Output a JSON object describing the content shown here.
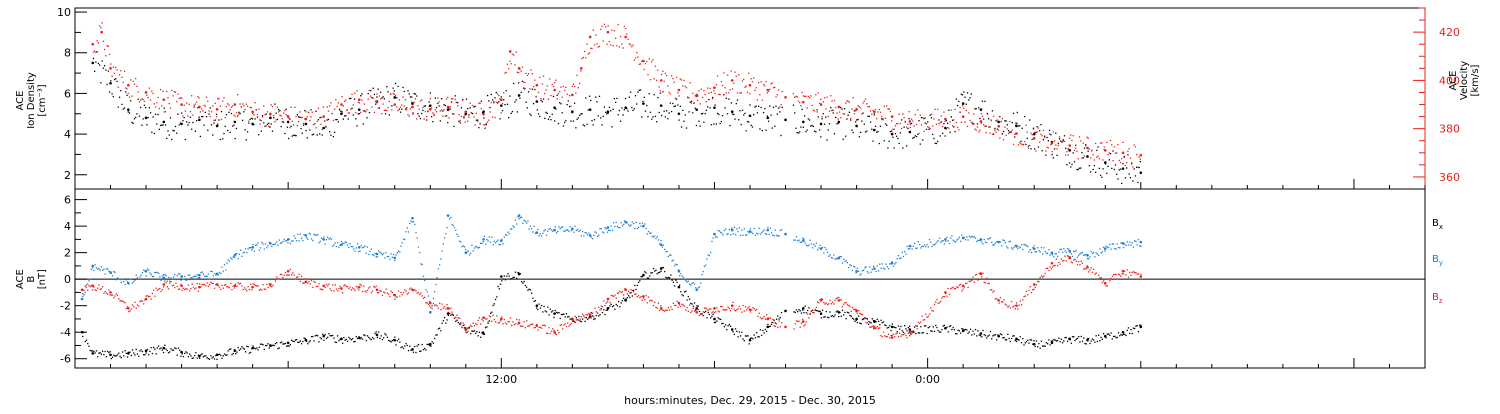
{
  "chart_data": [
    {
      "type": "scatter",
      "panel": "top",
      "ylabel_lines": [
        "ACE",
        "Ion Density",
        "[cm⁻³]"
      ],
      "y2label_lines": [
        "ACE",
        "Velocity",
        "[km/s]"
      ],
      "ylim": [
        1.3,
        10.2
      ],
      "y2lim": [
        355,
        430
      ],
      "yticks": [
        2,
        4,
        6,
        8,
        10
      ],
      "y2ticks": [
        360,
        380,
        400,
        420
      ],
      "series": [
        {
          "color": "#000000",
          "axis": "left",
          "x": [
            -11.5,
            -11,
            -10.5,
            -10,
            -9.5,
            -9,
            -8.5,
            -8,
            -7.5,
            -7,
            -6.5,
            -6,
            -5.5,
            -5,
            -4.5,
            -4,
            -3.5,
            -3,
            -2.5,
            -2,
            -1.5,
            -1,
            -0.5,
            0,
            0.5,
            1,
            1.5,
            2,
            2.5,
            3,
            3.5,
            4,
            4.5,
            5,
            5.5,
            6,
            6.5,
            7,
            7.5,
            8,
            8.5,
            9,
            9.5,
            10,
            10.5,
            11,
            11.5,
            12.5,
            13,
            13.5,
            14,
            14.5,
            15,
            15.5,
            16,
            16.5,
            17,
            17.5,
            18
          ],
          "y": [
            7.5,
            6.5,
            5.2,
            4.8,
            4.6,
            4.5,
            4.7,
            4.4,
            4.6,
            4.5,
            4.8,
            4.6,
            4.5,
            4.3,
            5.0,
            5.2,
            5.6,
            5.8,
            5.5,
            5.4,
            5.2,
            5.0,
            5.1,
            5.4,
            5.9,
            5.6,
            5.3,
            5.1,
            5.2,
            5.1,
            5.3,
            5.5,
            5.4,
            5.0,
            5.2,
            5.3,
            5.1,
            4.9,
            4.8,
            4.7,
            4.6,
            4.5,
            4.6,
            4.4,
            4.2,
            4.0,
            4.1,
            4.3,
            5.5,
            5.2,
            4.6,
            4.4,
            4.0,
            3.6,
            3.2,
            2.9,
            2.6,
            2.3,
            2.1
          ]
        },
        {
          "color": "#e8211b",
          "axis": "right",
          "x": [
            -11.5,
            -11.25,
            -11,
            -10.5,
            -10,
            -9.5,
            -9,
            -8.5,
            -8,
            -7.5,
            -7,
            -6.5,
            -6,
            -5.5,
            -5,
            -4.5,
            -4,
            -3.5,
            -3,
            -2.5,
            -2,
            -1.5,
            -1,
            -0.5,
            0,
            0.25,
            0.5,
            1,
            1.5,
            2,
            2.25,
            2.5,
            3,
            3.5,
            4,
            4.5,
            5,
            5.5,
            6,
            6.5,
            7,
            7.5,
            8,
            8.5,
            9,
            9.5,
            10,
            10.5,
            11,
            11.5,
            12.5,
            13,
            13.5,
            14,
            14.5,
            15,
            15.5,
            16,
            16.5,
            17,
            17.5,
            18
          ],
          "y": [
            415,
            420,
            405,
            398,
            395,
            392,
            390,
            389,
            388,
            390,
            387,
            386,
            385,
            384,
            385,
            390,
            392,
            391,
            390,
            389,
            388,
            389,
            387,
            386,
            392,
            412,
            405,
            398,
            396,
            394,
            405,
            418,
            420,
            418,
            408,
            400,
            396,
            394,
            397,
            400,
            398,
            396,
            393,
            391,
            390,
            389,
            388,
            387,
            385,
            383,
            384,
            385,
            383,
            381,
            378,
            376,
            374,
            373,
            372,
            371,
            370,
            369
          ]
        }
      ]
    },
    {
      "type": "scatter",
      "panel": "bottom",
      "ylabel_lines": [
        "ACE",
        "B",
        "[nT]"
      ],
      "ylim": [
        -6.7,
        6.8
      ],
      "yticks": [
        -6,
        -4,
        -2,
        0,
        2,
        4,
        6
      ],
      "xlabel": "hours:minutes, Dec. 29, 2015 - Dec. 30, 2015",
      "xlim": [
        -12,
        26
      ],
      "x_tick_labels": [
        {
          "x": 0,
          "label": "12:00"
        },
        {
          "x": 12,
          "label": "0:00"
        }
      ],
      "series": [
        {
          "name": "Bx",
          "label_main": "B",
          "label_sub": "x",
          "color": "#000000",
          "x": [
            -11.8,
            -11.5,
            -11,
            -10.5,
            -10,
            -9.5,
            -9,
            -8.5,
            -8,
            -7.5,
            -7,
            -6.5,
            -6,
            -5.5,
            -5,
            -4.5,
            -4,
            -3.5,
            -3,
            -2.5,
            -2,
            -1.5,
            -1,
            -0.5,
            0,
            0.5,
            1,
            1.5,
            2,
            2.5,
            3,
            3.5,
            4,
            4.5,
            5,
            5.5,
            6,
            6.5,
            7,
            7.5,
            8,
            8.5,
            9,
            9.5,
            10,
            10.5,
            11,
            11.5,
            12.5,
            13,
            13.5,
            14,
            14.5,
            15,
            15.5,
            16,
            16.5,
            17,
            17.5,
            18
          ],
          "y": [
            -4.0,
            -5.6,
            -5.7,
            -5.6,
            -5.4,
            -5.2,
            -5.5,
            -5.8,
            -5.7,
            -5.4,
            -5.2,
            -5.0,
            -4.8,
            -4.6,
            -4.3,
            -4.5,
            -4.4,
            -4.2,
            -4.6,
            -5.3,
            -4.9,
            -2.6,
            -3.8,
            -4.1,
            0.2,
            0.4,
            -2.0,
            -2.6,
            -3.0,
            -2.8,
            -2.2,
            -1.6,
            0.3,
            0.8,
            -0.6,
            -2.2,
            -3.0,
            -3.8,
            -4.6,
            -3.6,
            -2.4,
            -2.2,
            -2.6,
            -2.5,
            -3.0,
            -3.2,
            -3.6,
            -3.8,
            -3.7,
            -3.9,
            -4.1,
            -4.3,
            -4.5,
            -4.9,
            -4.8,
            -4.5,
            -4.6,
            -4.3,
            -4.0,
            -3.6
          ]
        },
        {
          "name": "By",
          "label_main": "B",
          "label_sub": "y",
          "color": "#1f7fd4",
          "x": [
            -11.8,
            -11.5,
            -11,
            -10.5,
            -10,
            -9.5,
            -9,
            -8.5,
            -8,
            -7.5,
            -7,
            -6.5,
            -6,
            -5.5,
            -5,
            -4.5,
            -4,
            -3.5,
            -3,
            -2.5,
            -2,
            -1.5,
            -1,
            -0.5,
            0,
            0.5,
            1,
            1.5,
            2,
            2.5,
            3,
            3.5,
            4,
            4.5,
            5,
            5.5,
            6,
            6.5,
            7,
            7.5,
            8,
            8.5,
            9,
            9.5,
            10,
            10.5,
            11,
            11.5,
            12.5,
            13,
            13.5,
            14,
            14.5,
            15,
            15.5,
            16,
            16.5,
            17,
            17.5,
            18
          ],
          "y": [
            -1.5,
            1.0,
            0.5,
            -0.3,
            0.6,
            0.1,
            0.2,
            0.3,
            0.4,
            1.8,
            2.4,
            2.7,
            3.0,
            3.3,
            3.0,
            2.6,
            2.4,
            1.9,
            1.6,
            4.6,
            -2.5,
            4.8,
            2.0,
            3.0,
            2.9,
            4.8,
            3.5,
            3.7,
            3.8,
            3.3,
            3.9,
            4.3,
            4.0,
            2.6,
            0.6,
            -0.8,
            3.4,
            3.7,
            3.6,
            3.7,
            3.4,
            2.9,
            2.3,
            1.6,
            0.6,
            0.8,
            1.2,
            2.5,
            3.0,
            3.1,
            3.0,
            2.8,
            2.5,
            2.3,
            2.0,
            2.1,
            1.8,
            2.3,
            2.7,
            2.8
          ]
        },
        {
          "name": "Bz",
          "label_main": "B",
          "label_sub": "z",
          "color": "#e8211b",
          "x": [
            -11.8,
            -11.5,
            -11,
            -10.5,
            -10,
            -9.5,
            -9,
            -8.5,
            -8,
            -7.5,
            -7,
            -6.5,
            -6,
            -5.5,
            -5,
            -4.5,
            -4,
            -3.5,
            -3,
            -2.5,
            -2,
            -1.5,
            -1,
            -0.5,
            0,
            0.5,
            1,
            1.5,
            2,
            2.5,
            3,
            3.5,
            4,
            4.5,
            5,
            5.5,
            6,
            6.5,
            7,
            7.5,
            8,
            8.5,
            9,
            9.5,
            10,
            10.5,
            11,
            11.5,
            12.5,
            13,
            13.5,
            14,
            14.5,
            15,
            15.5,
            16,
            16.5,
            17,
            17.5,
            18
          ],
          "y": [
            -0.8,
            -0.5,
            -1.0,
            -2.2,
            -1.5,
            -0.4,
            -0.5,
            -0.6,
            -0.4,
            -0.5,
            -0.6,
            -0.4,
            0.6,
            -0.2,
            -0.5,
            -0.7,
            -0.6,
            -0.8,
            -1.2,
            -0.8,
            -1.8,
            -2.2,
            -3.8,
            -2.9,
            -3.0,
            -3.3,
            -3.5,
            -4.0,
            -3.0,
            -2.7,
            -1.5,
            -0.8,
            -1.3,
            -2.2,
            -1.8,
            -2.5,
            -2.2,
            -2.0,
            -2.3,
            -3.0,
            -3.6,
            -3.2,
            -1.6,
            -1.6,
            -2.4,
            -3.7,
            -4.4,
            -4.0,
            -1.0,
            -0.5,
            0.4,
            -1.6,
            -2.0,
            -0.4,
            1.2,
            1.6,
            0.9,
            -0.3,
            0.6,
            0.2
          ]
        }
      ]
    }
  ]
}
